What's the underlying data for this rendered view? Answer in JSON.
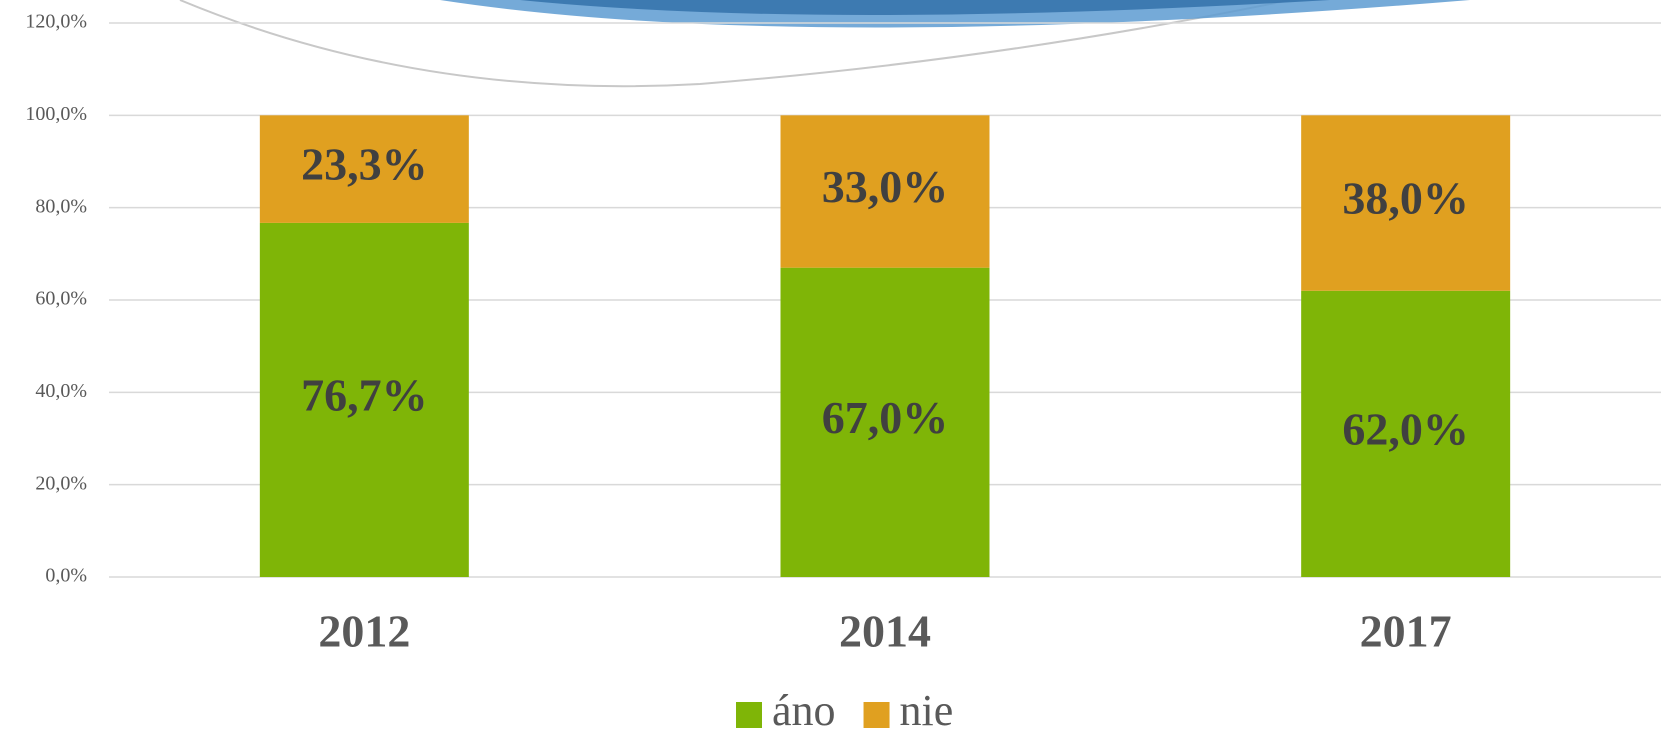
{
  "chart_data": {
    "type": "stacked_bar",
    "categories": [
      "2012",
      "2014",
      "2017"
    ],
    "series": [
      {
        "name": "áno",
        "color": "#7fb507",
        "values": [
          76.7,
          67.0,
          62.0
        ],
        "value_labels": [
          "76,7%",
          "67,0%",
          "62,0%"
        ]
      },
      {
        "name": "nie",
        "color": "#e0a020",
        "values": [
          23.3,
          33.0,
          38.0
        ],
        "value_labels": [
          "23,3%",
          "33,0%",
          "38,0%"
        ]
      }
    ],
    "ylim": [
      0,
      120
    ],
    "yticks": [
      {
        "value": 0,
        "label": "0,0%"
      },
      {
        "value": 20,
        "label": "20,0%"
      },
      {
        "value": 40,
        "label": "40,0%"
      },
      {
        "value": 60,
        "label": "60,0%"
      },
      {
        "value": 80,
        "label": "80,0%"
      },
      {
        "value": 100,
        "label": "100,0%"
      },
      {
        "value": 120,
        "label": "120,0%"
      }
    ],
    "grid": true,
    "legend": "bottom"
  }
}
